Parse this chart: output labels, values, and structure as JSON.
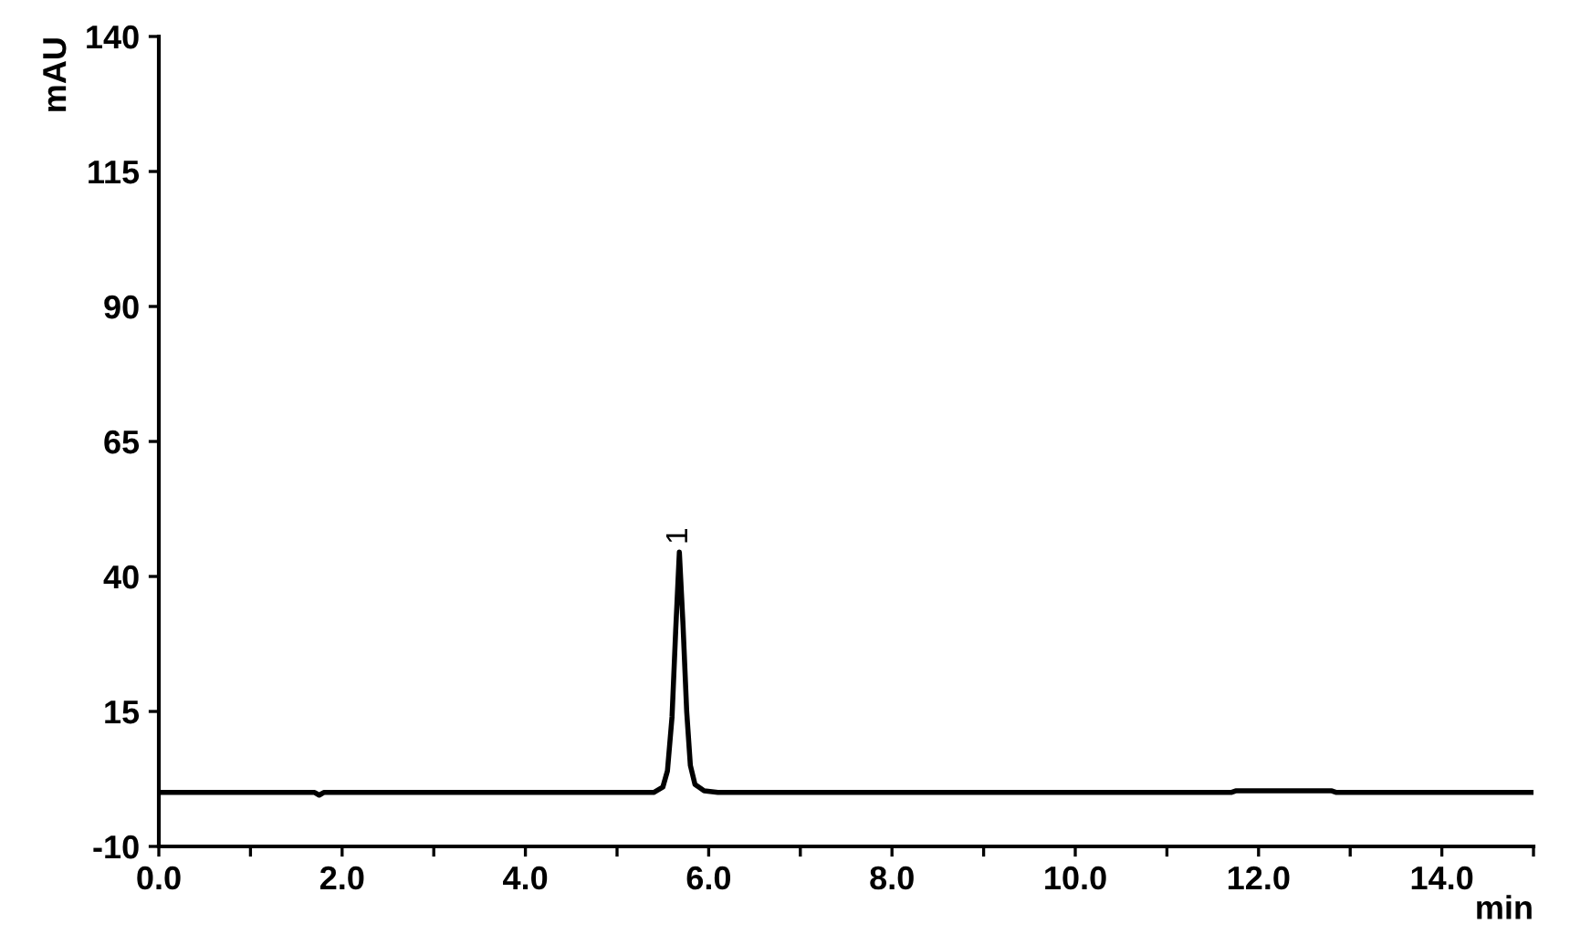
{
  "chart_data": {
    "type": "line",
    "xlabel": "min",
    "ylabel": "mAU",
    "x": [
      0,
      1.7,
      1.75,
      1.8,
      5.4,
      5.5,
      5.55,
      5.6,
      5.64,
      5.68,
      5.72,
      5.76,
      5.8,
      5.85,
      5.95,
      6.1,
      11.7,
      11.75,
      12.8,
      12.85,
      15
    ],
    "series": [
      {
        "color": "#000000",
        "values": [
          0,
          0,
          -0.5,
          0,
          0,
          1,
          4,
          14,
          30,
          44.5,
          31,
          15,
          5,
          1.5,
          0.3,
          0,
          0,
          0.3,
          0.3,
          0,
          0
        ]
      }
    ],
    "annotations": [
      {
        "text": "1",
        "x": 5.68,
        "y": 44.5
      }
    ],
    "xlim": [
      0,
      15
    ],
    "ylim": [
      -10,
      140
    ],
    "xticks": [
      {
        "value": 0,
        "label": "0.0"
      },
      {
        "value": 1,
        "label": null
      },
      {
        "value": 2,
        "label": "2.0"
      },
      {
        "value": 3,
        "label": null
      },
      {
        "value": 4,
        "label": "4.0"
      },
      {
        "value": 5,
        "label": null
      },
      {
        "value": 6,
        "label": "6.0"
      },
      {
        "value": 7,
        "label": null
      },
      {
        "value": 8,
        "label": "8.0"
      },
      {
        "value": 9,
        "label": null
      },
      {
        "value": 10,
        "label": "10.0"
      },
      {
        "value": 11,
        "label": null
      },
      {
        "value": 12,
        "label": "12.0"
      },
      {
        "value": 13,
        "label": null
      },
      {
        "value": 14,
        "label": "14.0"
      },
      {
        "value": 15,
        "label": null
      }
    ],
    "yticks": [
      -10,
      15,
      40,
      65,
      90,
      115,
      140
    ],
    "grid": false,
    "legend": false,
    "marker": "none",
    "line_style": "solid"
  }
}
